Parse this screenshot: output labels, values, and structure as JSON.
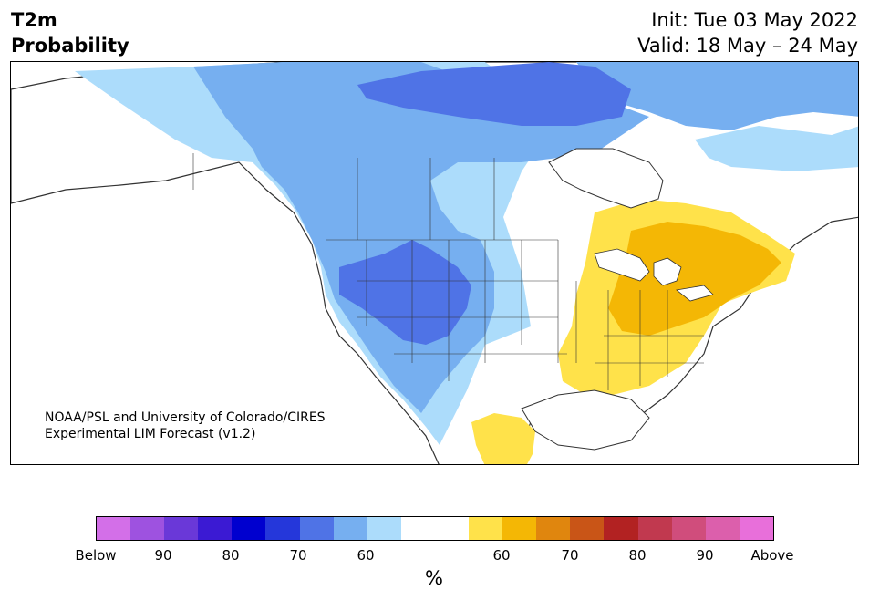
{
  "header": {
    "title_line1": "T2m",
    "title_line2": "Probability",
    "init_text": "Init: Tue 03 May 2022",
    "valid_text": "Valid: 18 May – 24 May"
  },
  "credit": {
    "line1": "NOAA/PSL and University of Colorado/CIRES",
    "line2": "Experimental LIM Forecast (v1.2)"
  },
  "colorbar": {
    "colors": [
      "#d36fe8",
      "#9e52e0",
      "#6a38d8",
      "#3b1ad3",
      "#0000cf",
      "#2537da",
      "#4f73e6",
      "#76aff0",
      "#acdcfb",
      "#ffffff",
      "#ffffff",
      "#ffe24a",
      "#f4b705",
      "#e0860e",
      "#c95517",
      "#b22222",
      "#c1394f",
      "#d04d7c",
      "#dc5fac",
      "#e86fda"
    ],
    "labels": [
      "Below",
      "90",
      "80",
      "70",
      "60",
      "60",
      "70",
      "80",
      "90",
      "Above"
    ],
    "unit": "%"
  },
  "map": {
    "land_color": "#ffffff",
    "border_color": "#333333",
    "blue_shades": [
      "#acdcfb",
      "#76aff0",
      "#4f73e6"
    ],
    "orange_shades": [
      "#ffe24a",
      "#f4b705"
    ]
  }
}
